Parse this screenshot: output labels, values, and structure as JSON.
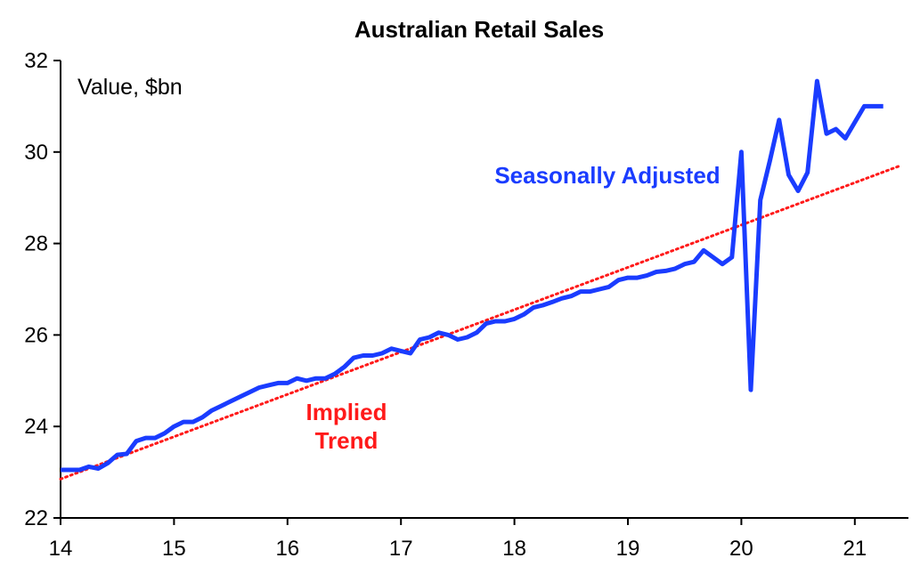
{
  "chart_data": {
    "type": "line",
    "title": "Australian Retail Sales",
    "unit_label": "Value, $bn",
    "xlim": [
      14,
      21.4
    ],
    "ylim": [
      22,
      32
    ],
    "x_ticks": [
      14,
      15,
      16,
      17,
      18,
      19,
      20,
      21
    ],
    "y_ticks": [
      22,
      24,
      26,
      28,
      30,
      32
    ],
    "grid": false,
    "legend": "none",
    "annotations": [
      {
        "text": "Seasonally Adjusted",
        "color": "#1a3cff"
      },
      {
        "text": "Implied",
        "color": "#ff1a1a"
      },
      {
        "text": "Trend",
        "color": "#ff1a1a"
      }
    ],
    "series": [
      {
        "name": "Seasonally Adjusted",
        "color": "#1a3cff",
        "style": "solid",
        "x": [
          14.0,
          14.083,
          14.167,
          14.25,
          14.333,
          14.417,
          14.5,
          14.583,
          14.667,
          14.75,
          14.833,
          14.917,
          15.0,
          15.083,
          15.167,
          15.25,
          15.333,
          15.417,
          15.5,
          15.583,
          15.667,
          15.75,
          15.833,
          15.917,
          16.0,
          16.083,
          16.167,
          16.25,
          16.333,
          16.417,
          16.5,
          16.583,
          16.667,
          16.75,
          16.833,
          16.917,
          17.0,
          17.083,
          17.167,
          17.25,
          17.333,
          17.417,
          17.5,
          17.583,
          17.667,
          17.75,
          17.833,
          17.917,
          18.0,
          18.083,
          18.167,
          18.25,
          18.333,
          18.417,
          18.5,
          18.583,
          18.667,
          18.75,
          18.833,
          18.917,
          19.0,
          19.083,
          19.167,
          19.25,
          19.333,
          19.417,
          19.5,
          19.583,
          19.667,
          19.75,
          19.833,
          19.917,
          20.0,
          20.083,
          20.167,
          20.25,
          20.333,
          20.417,
          20.5,
          20.583,
          20.667,
          20.75,
          20.833,
          20.917,
          21.0,
          21.083,
          21.167,
          21.25
        ],
        "y": [
          23.05,
          23.05,
          23.05,
          23.12,
          23.08,
          23.2,
          23.38,
          23.4,
          23.68,
          23.75,
          23.75,
          23.85,
          24.0,
          24.1,
          24.1,
          24.2,
          24.35,
          24.45,
          24.55,
          24.65,
          24.75,
          24.85,
          24.9,
          24.95,
          24.95,
          25.05,
          25.0,
          25.05,
          25.05,
          25.15,
          25.3,
          25.5,
          25.55,
          25.55,
          25.6,
          25.7,
          25.65,
          25.6,
          25.9,
          25.95,
          26.05,
          26.0,
          25.9,
          25.95,
          26.05,
          26.25,
          26.3,
          26.3,
          26.35,
          26.45,
          26.6,
          26.65,
          26.72,
          26.8,
          26.85,
          26.95,
          26.95,
          27.0,
          27.05,
          27.2,
          27.25,
          27.25,
          27.3,
          27.38,
          27.4,
          27.45,
          27.55,
          27.6,
          27.85,
          27.7,
          27.55,
          27.7,
          30.0,
          24.8,
          28.95,
          29.8,
          30.7,
          29.5,
          29.15,
          29.55,
          31.55,
          30.4,
          30.5,
          30.3,
          30.65,
          31.0,
          31.0,
          31.0
        ]
      },
      {
        "name": "Implied Trend",
        "color": "#ff1a1a",
        "style": "dotted",
        "x": [
          14.0,
          21.4
        ],
        "y": [
          22.85,
          29.7
        ]
      }
    ]
  }
}
